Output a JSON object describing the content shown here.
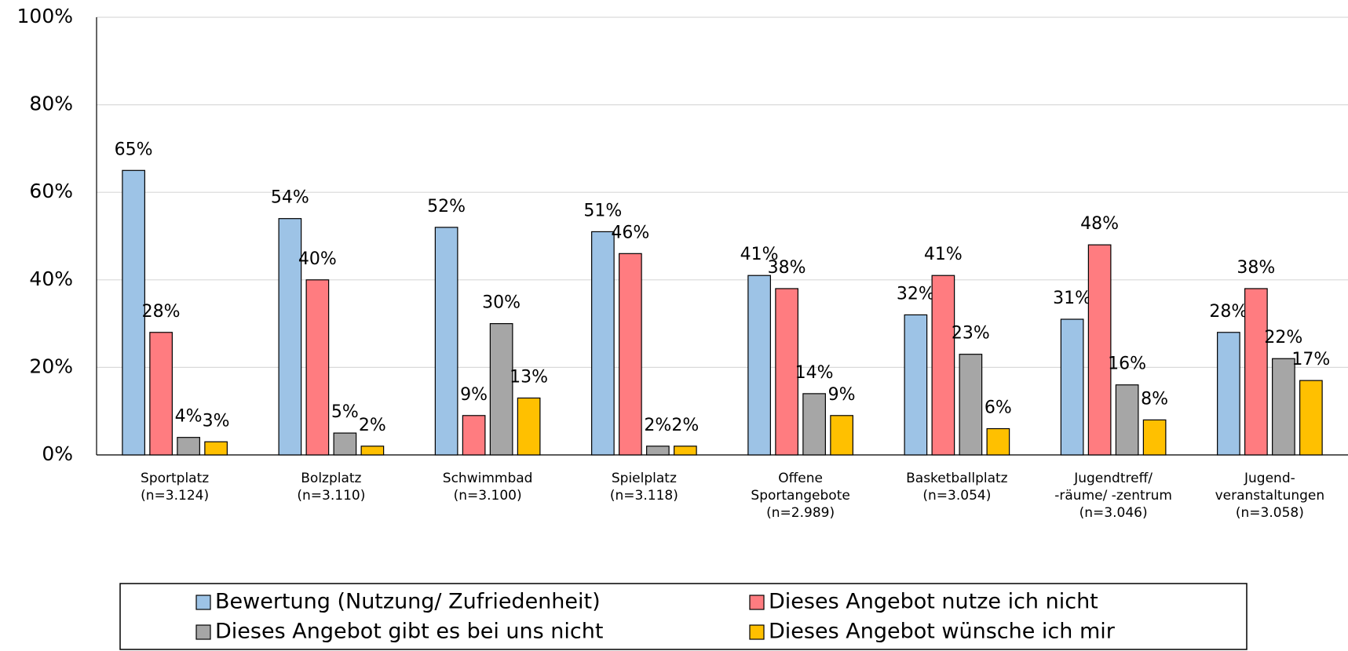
{
  "chart_data": {
    "type": "bar",
    "categories": [
      [
        "Sportplatz",
        "(n=3.124)"
      ],
      [
        "Bolzplatz",
        "(n=3.110)"
      ],
      [
        "Schwimmbad",
        "(n=3.100)"
      ],
      [
        "Spielplatz",
        "(n=3.118)"
      ],
      [
        "Offene",
        "Sportangebote",
        "(n=2.989)"
      ],
      [
        "Basketballplatz",
        "(n=3.054)"
      ],
      [
        "Jugendtreff/",
        "-räume/ -zentrum",
        "(n=3.046)"
      ],
      [
        "Jugend-",
        "veranstaltungen",
        "(n=3.058)"
      ]
    ],
    "series": [
      {
        "name": "Bewertung (Nutzung/ Zufriedenheit)",
        "color": "#9dc3e6",
        "values": [
          65,
          54,
          52,
          51,
          41,
          32,
          31,
          28
        ],
        "value_labels": [
          "65%",
          "54%",
          "52%",
          "51%",
          "41%",
          "32%",
          "31%",
          "28%"
        ]
      },
      {
        "name": "Dieses Angebot nutze ich nicht",
        "color": "#ff7c80",
        "values": [
          28,
          40,
          9,
          46,
          38,
          41,
          48,
          38
        ],
        "value_labels": [
          "28%",
          "40%",
          "9%",
          "46%",
          "38%",
          "41%",
          "48%",
          "38%"
        ]
      },
      {
        "name": "Dieses Angebot gibt es bei uns nicht",
        "color": "#a6a6a6",
        "values": [
          4,
          5,
          30,
          2,
          14,
          23,
          16,
          22
        ],
        "value_labels": [
          "4%",
          "5%",
          "30%",
          "2%",
          "14%",
          "23%",
          "16%",
          "22%"
        ]
      },
      {
        "name": "Dieses Angebot wünsche ich mir",
        "color": "#ffc000",
        "values": [
          3,
          2,
          13,
          2,
          9,
          6,
          8,
          17
        ],
        "value_labels": [
          "3%",
          "2%",
          "13%",
          "2%",
          "9%",
          "6%",
          "8%",
          "17%"
        ]
      }
    ],
    "ylim": [
      0,
      100
    ],
    "yticks": [
      {
        "value": 0,
        "label": "0%"
      },
      {
        "value": 20,
        "label": "20%"
      },
      {
        "value": 40,
        "label": "40%"
      },
      {
        "value": 60,
        "label": "60%"
      },
      {
        "value": 80,
        "label": "80%"
      },
      {
        "value": 100,
        "label": "100%"
      }
    ],
    "grid": true,
    "legend": "bottom"
  }
}
